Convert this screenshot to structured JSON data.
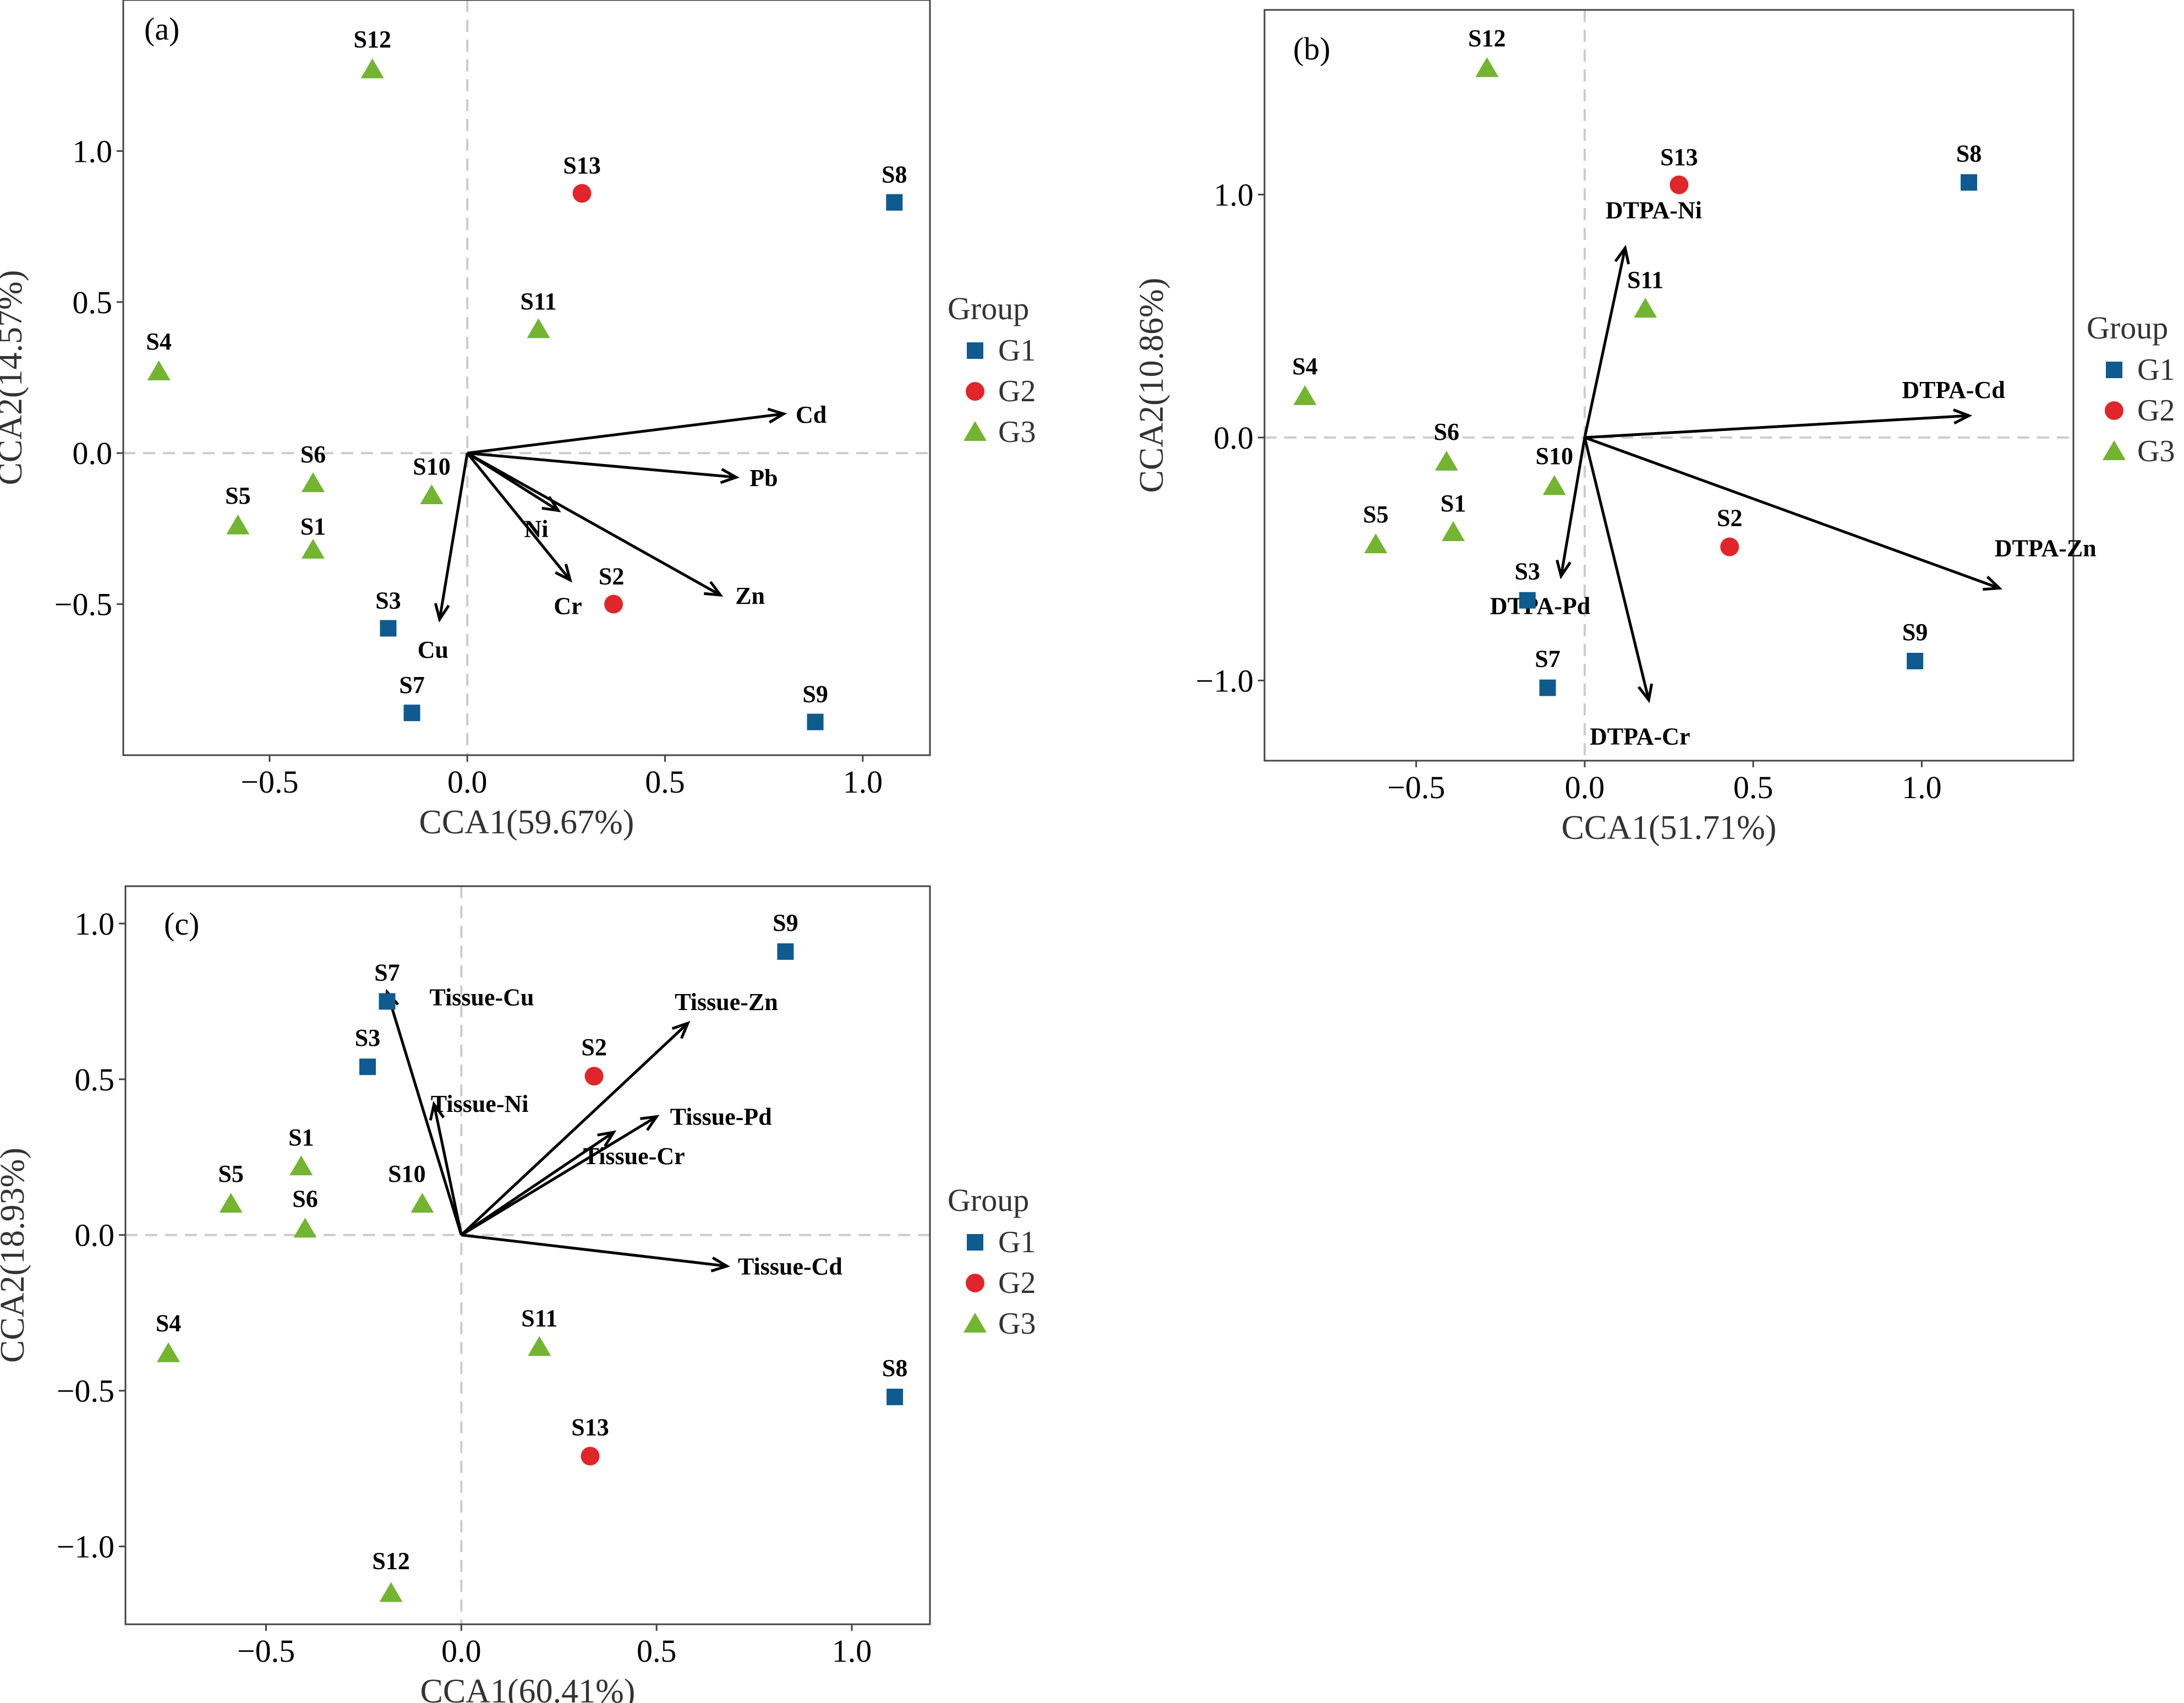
{
  "figure": {
    "groups": [
      {
        "name": "G1",
        "color": "#0f5a8e",
        "marker": "square"
      },
      {
        "name": "G2",
        "color": "#e0262a",
        "marker": "circle"
      },
      {
        "name": "G3",
        "color": "#73b431",
        "marker": "triangle"
      }
    ],
    "legend_title": "Group"
  },
  "chart_data": [
    {
      "type": "scatter",
      "panel": "(a)",
      "xlabel": "CCA1(59.67%)",
      "ylabel": "CCA2(14.57%)",
      "xlim": [
        -0.87,
        1.17
      ],
      "ylim": [
        -1.0,
        1.5
      ],
      "xticks": [
        -0.5,
        0.0,
        0.5,
        1.0
      ],
      "xtick_labels": [
        "−0.5",
        "0.0",
        "0.5",
        "1.0"
      ],
      "yticks": [
        -0.5,
        0.0,
        0.5,
        1.0
      ],
      "ytick_labels": [
        "−0.5",
        "0.0",
        "0.5",
        "1.0"
      ],
      "legend_position": "right",
      "points": [
        {
          "label": "S1",
          "group": "G3",
          "x": -0.39,
          "y": -0.32
        },
        {
          "label": "S2",
          "group": "G2",
          "x": 0.37,
          "y": -0.5
        },
        {
          "label": "S3",
          "group": "G1",
          "x": -0.2,
          "y": -0.58
        },
        {
          "label": "S4",
          "group": "G3",
          "x": -0.78,
          "y": 0.27
        },
        {
          "label": "S5",
          "group": "G3",
          "x": -0.58,
          "y": -0.24
        },
        {
          "label": "S6",
          "group": "G3",
          "x": -0.39,
          "y": -0.1
        },
        {
          "label": "S7",
          "group": "G1",
          "x": -0.14,
          "y": -0.86
        },
        {
          "label": "S8",
          "group": "G1",
          "x": 1.08,
          "y": 0.83
        },
        {
          "label": "S9",
          "group": "G1",
          "x": 0.88,
          "y": -0.89
        },
        {
          "label": "S10",
          "group": "G3",
          "x": -0.09,
          "y": -0.14
        },
        {
          "label": "S11",
          "group": "G3",
          "x": 0.18,
          "y": 0.41
        },
        {
          "label": "S12",
          "group": "G3",
          "x": -0.24,
          "y": 1.27
        },
        {
          "label": "S13",
          "group": "G2",
          "x": 0.29,
          "y": 0.86
        }
      ],
      "vectors": [
        {
          "label": "Cd",
          "x": 0.8,
          "y": 0.13
        },
        {
          "label": "Pb",
          "x": 0.68,
          "y": -0.08
        },
        {
          "label": "Ni",
          "x": 0.23,
          "y": -0.19
        },
        {
          "label": "Cr",
          "x": 0.26,
          "y": -0.42
        },
        {
          "label": "Zn",
          "x": 0.64,
          "y": -0.47
        },
        {
          "label": "Cu",
          "x": -0.07,
          "y": -0.55
        }
      ]
    },
    {
      "type": "scatter",
      "panel": "(b)",
      "xlabel": "CCA1(51.71%)",
      "ylabel": "CCA2(10.86%)",
      "xlim": [
        -0.95,
        1.45
      ],
      "ylim": [
        -1.33,
        1.76
      ],
      "xticks": [
        -0.5,
        0.0,
        0.5,
        1.0
      ],
      "xtick_labels": [
        "−0.5",
        "0.0",
        "0.5",
        "1.0"
      ],
      "yticks": [
        -1.0,
        0.0,
        1.0
      ],
      "ytick_labels": [
        "−1.0",
        "0.0",
        "1.0"
      ],
      "legend_position": "right",
      "points": [
        {
          "label": "S1",
          "group": "G3",
          "x": -0.39,
          "y": -0.39
        },
        {
          "label": "S2",
          "group": "G2",
          "x": 0.43,
          "y": -0.45
        },
        {
          "label": "S3",
          "group": "G1",
          "x": -0.17,
          "y": -0.67
        },
        {
          "label": "S4",
          "group": "G3",
          "x": -0.83,
          "y": 0.17
        },
        {
          "label": "S5",
          "group": "G3",
          "x": -0.62,
          "y": -0.44
        },
        {
          "label": "S6",
          "group": "G3",
          "x": -0.41,
          "y": -0.1
        },
        {
          "label": "S7",
          "group": "G1",
          "x": -0.11,
          "y": -1.03
        },
        {
          "label": "S8",
          "group": "G1",
          "x": 1.14,
          "y": 1.05
        },
        {
          "label": "S9",
          "group": "G1",
          "x": 0.98,
          "y": -0.92
        },
        {
          "label": "S10",
          "group": "G3",
          "x": -0.09,
          "y": -0.2
        },
        {
          "label": "S11",
          "group": "G3",
          "x": 0.18,
          "y": 0.53
        },
        {
          "label": "S12",
          "group": "G3",
          "x": -0.29,
          "y": 1.52
        },
        {
          "label": "S13",
          "group": "G2",
          "x": 0.28,
          "y": 1.04
        }
      ],
      "vectors": [
        {
          "label": "DTPA-Ni",
          "x": 0.12,
          "y": 0.78
        },
        {
          "label": "DTPA-Cd",
          "x": 1.14,
          "y": 0.09
        },
        {
          "label": "DTPA-Zn",
          "x": 1.23,
          "y": -0.62
        },
        {
          "label": "DTPA-Pd",
          "x": -0.07,
          "y": -0.57
        },
        {
          "label": "DTPA-Cr",
          "x": 0.19,
          "y": -1.08
        }
      ]
    },
    {
      "type": "scatter",
      "panel": "(c)",
      "xlabel": "CCA1(60.41%)",
      "ylabel": "CCA2(18.93%)",
      "xlim": [
        -0.86,
        1.2
      ],
      "ylim": [
        -1.25,
        1.12
      ],
      "xticks": [
        -0.5,
        0.0,
        0.5,
        1.0
      ],
      "xtick_labels": [
        "−0.5",
        "0.0",
        "0.5",
        "1.0"
      ],
      "yticks": [
        -1.0,
        -0.5,
        0.0,
        0.5,
        1.0
      ],
      "ytick_labels": [
        "−1.0",
        "−0.5",
        "0.0",
        "0.5",
        "1.0"
      ],
      "legend_position": "right",
      "points": [
        {
          "label": "S1",
          "group": "G3",
          "x": -0.41,
          "y": 0.22
        },
        {
          "label": "S2",
          "group": "G2",
          "x": 0.34,
          "y": 0.51
        },
        {
          "label": "S3",
          "group": "G1",
          "x": -0.24,
          "y": 0.54
        },
        {
          "label": "S4",
          "group": "G3",
          "x": -0.75,
          "y": -0.38
        },
        {
          "label": "S5",
          "group": "G3",
          "x": -0.59,
          "y": 0.1
        },
        {
          "label": "S6",
          "group": "G3",
          "x": -0.4,
          "y": 0.02
        },
        {
          "label": "S7",
          "group": "G1",
          "x": -0.19,
          "y": 0.75
        },
        {
          "label": "S8",
          "group": "G1",
          "x": 1.11,
          "y": -0.52
        },
        {
          "label": "S9",
          "group": "G1",
          "x": 0.83,
          "y": 0.91
        },
        {
          "label": "S10",
          "group": "G3",
          "x": -0.1,
          "y": 0.1
        },
        {
          "label": "S11",
          "group": "G3",
          "x": 0.2,
          "y": -0.36
        },
        {
          "label": "S12",
          "group": "G3",
          "x": -0.18,
          "y": -1.15
        },
        {
          "label": "S13",
          "group": "G2",
          "x": 0.33,
          "y": -0.71
        }
      ],
      "vectors": [
        {
          "label": "Tissue-Cu",
          "x": -0.19,
          "y": 0.78
        },
        {
          "label": "Tissue-Ni",
          "x": -0.07,
          "y": 0.42
        },
        {
          "label": "Tissue-Zn",
          "x": 0.58,
          "y": 0.68
        },
        {
          "label": "Tissue-Pd",
          "x": 0.5,
          "y": 0.38
        },
        {
          "label": "Tissue-Cr",
          "x": 0.39,
          "y": 0.33
        },
        {
          "label": "Tissue-Cd",
          "x": 0.68,
          "y": -0.1
        }
      ]
    }
  ]
}
